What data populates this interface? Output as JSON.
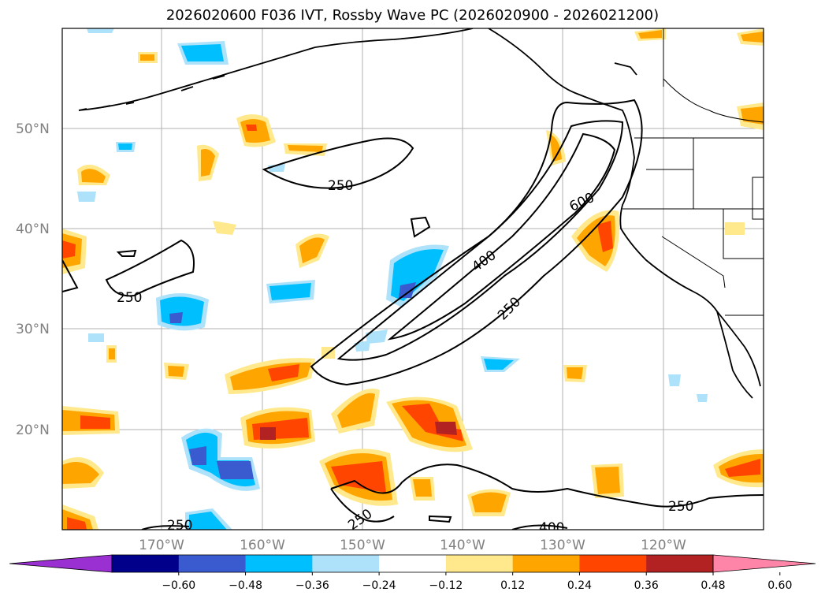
{
  "title": "2026020600 F036 IVT, Rossby Wave PC (2026020900 - 2026021200)",
  "latitude_labels": [
    "50°N",
    "40°N",
    "30°N",
    "20°N"
  ],
  "longitude_labels": [
    "170°W",
    "160°W",
    "150°W",
    "140°W",
    "130°W",
    "120°W"
  ],
  "contour_labels": [
    "250",
    "250",
    "400",
    "250",
    "600",
    "250",
    "250",
    "250",
    "400"
  ],
  "colorbar": {
    "tick_labels": [
      "−0.60",
      "−0.48",
      "−0.36",
      "−0.24",
      "−0.12",
      "0.12",
      "0.24",
      "0.36",
      "0.48",
      "0.60"
    ],
    "colors": [
      "#9b30d2",
      "#00008b",
      "#3a5bd0",
      "#00bfff",
      "#aee2fa",
      "#ffffff",
      "#ffe98c",
      "#ffa500",
      "#ff4500",
      "#b22222",
      "#ff85a8"
    ]
  },
  "colors": {
    "contour": "#000000",
    "coastline": "#000000",
    "grid": "#b0b0b0"
  }
}
